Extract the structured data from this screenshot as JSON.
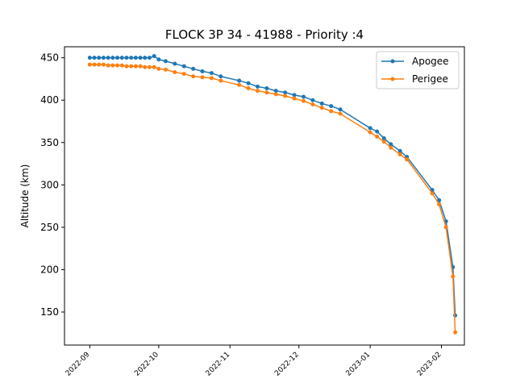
{
  "chart_data": {
    "type": "line",
    "title": "FLOCK 3P 34 - 41988 - Priority :4",
    "xlabel": "",
    "ylabel": "Altitude (km)",
    "x_axis_type": "date",
    "xlim": [
      "2022-08-21",
      "2023-02-11"
    ],
    "ylim": [
      111,
      463
    ],
    "x_ticks": [
      "2022-09",
      "2022-10",
      "2022-11",
      "2022-12",
      "2023-01",
      "2023-02"
    ],
    "y_ticks": [
      150,
      200,
      250,
      300,
      350,
      400,
      450
    ],
    "legend_position": "top-right",
    "grid": false,
    "series": [
      {
        "name": "Apogee",
        "color": "#1f77b4",
        "points": [
          [
            "2022-09-01",
            450
          ],
          [
            "2022-09-03",
            450
          ],
          [
            "2022-09-05",
            450
          ],
          [
            "2022-09-07",
            450
          ],
          [
            "2022-09-09",
            450
          ],
          [
            "2022-09-11",
            450
          ],
          [
            "2022-09-13",
            450
          ],
          [
            "2022-09-15",
            450
          ],
          [
            "2022-09-17",
            450
          ],
          [
            "2022-09-19",
            450
          ],
          [
            "2022-09-21",
            450
          ],
          [
            "2022-09-23",
            450
          ],
          [
            "2022-09-25",
            450
          ],
          [
            "2022-09-27",
            450
          ],
          [
            "2022-09-29",
            452
          ],
          [
            "2022-10-01",
            448
          ],
          [
            "2022-10-04",
            446
          ],
          [
            "2022-10-08",
            443
          ],
          [
            "2022-10-12",
            440
          ],
          [
            "2022-10-16",
            437
          ],
          [
            "2022-10-20",
            434
          ],
          [
            "2022-10-24",
            432
          ],
          [
            "2022-10-28",
            428
          ],
          [
            "2022-11-05",
            423
          ],
          [
            "2022-11-09",
            420
          ],
          [
            "2022-11-13",
            416
          ],
          [
            "2022-11-17",
            414
          ],
          [
            "2022-11-21",
            411
          ],
          [
            "2022-11-25",
            409
          ],
          [
            "2022-11-29",
            406
          ],
          [
            "2022-12-03",
            404
          ],
          [
            "2022-12-07",
            400
          ],
          [
            "2022-12-11",
            396
          ],
          [
            "2022-12-15",
            393
          ],
          [
            "2022-12-19",
            389
          ],
          [
            "2023-01-01",
            367
          ],
          [
            "2023-01-04",
            363
          ],
          [
            "2023-01-07",
            355
          ],
          [
            "2023-01-10",
            348
          ],
          [
            "2023-01-14",
            340
          ],
          [
            "2023-01-17",
            333
          ],
          [
            "2023-01-28",
            294
          ],
          [
            "2023-01-31",
            282
          ],
          [
            "2023-02-03",
            257
          ],
          [
            "2023-02-06",
            203
          ],
          [
            "2023-02-07",
            146
          ]
        ]
      },
      {
        "name": "Perigee",
        "color": "#ff7f0e",
        "points": [
          [
            "2022-09-01",
            442
          ],
          [
            "2022-09-03",
            442
          ],
          [
            "2022-09-05",
            442
          ],
          [
            "2022-09-07",
            442
          ],
          [
            "2022-09-09",
            441
          ],
          [
            "2022-09-11",
            441
          ],
          [
            "2022-09-13",
            441
          ],
          [
            "2022-09-15",
            441
          ],
          [
            "2022-09-17",
            440
          ],
          [
            "2022-09-19",
            440
          ],
          [
            "2022-09-21",
            440
          ],
          [
            "2022-09-23",
            440
          ],
          [
            "2022-09-25",
            439
          ],
          [
            "2022-09-27",
            439
          ],
          [
            "2022-09-29",
            439
          ],
          [
            "2022-10-01",
            437
          ],
          [
            "2022-10-04",
            436
          ],
          [
            "2022-10-08",
            433
          ],
          [
            "2022-10-12",
            431
          ],
          [
            "2022-10-16",
            428
          ],
          [
            "2022-10-20",
            427
          ],
          [
            "2022-10-24",
            426
          ],
          [
            "2022-10-28",
            423
          ],
          [
            "2022-11-05",
            418
          ],
          [
            "2022-11-09",
            414
          ],
          [
            "2022-11-13",
            411
          ],
          [
            "2022-11-17",
            409
          ],
          [
            "2022-11-21",
            407
          ],
          [
            "2022-11-25",
            405
          ],
          [
            "2022-11-29",
            402
          ],
          [
            "2022-12-03",
            399
          ],
          [
            "2022-12-07",
            395
          ],
          [
            "2022-12-11",
            391
          ],
          [
            "2022-12-15",
            387
          ],
          [
            "2022-12-19",
            384
          ],
          [
            "2023-01-01",
            362
          ],
          [
            "2023-01-04",
            357
          ],
          [
            "2023-01-07",
            351
          ],
          [
            "2023-01-10",
            344
          ],
          [
            "2023-01-14",
            336
          ],
          [
            "2023-01-17",
            330
          ],
          [
            "2023-01-28",
            290
          ],
          [
            "2023-01-31",
            277
          ],
          [
            "2023-02-03",
            250
          ],
          [
            "2023-02-06",
            192
          ],
          [
            "2023-02-07",
            126
          ]
        ]
      }
    ]
  }
}
